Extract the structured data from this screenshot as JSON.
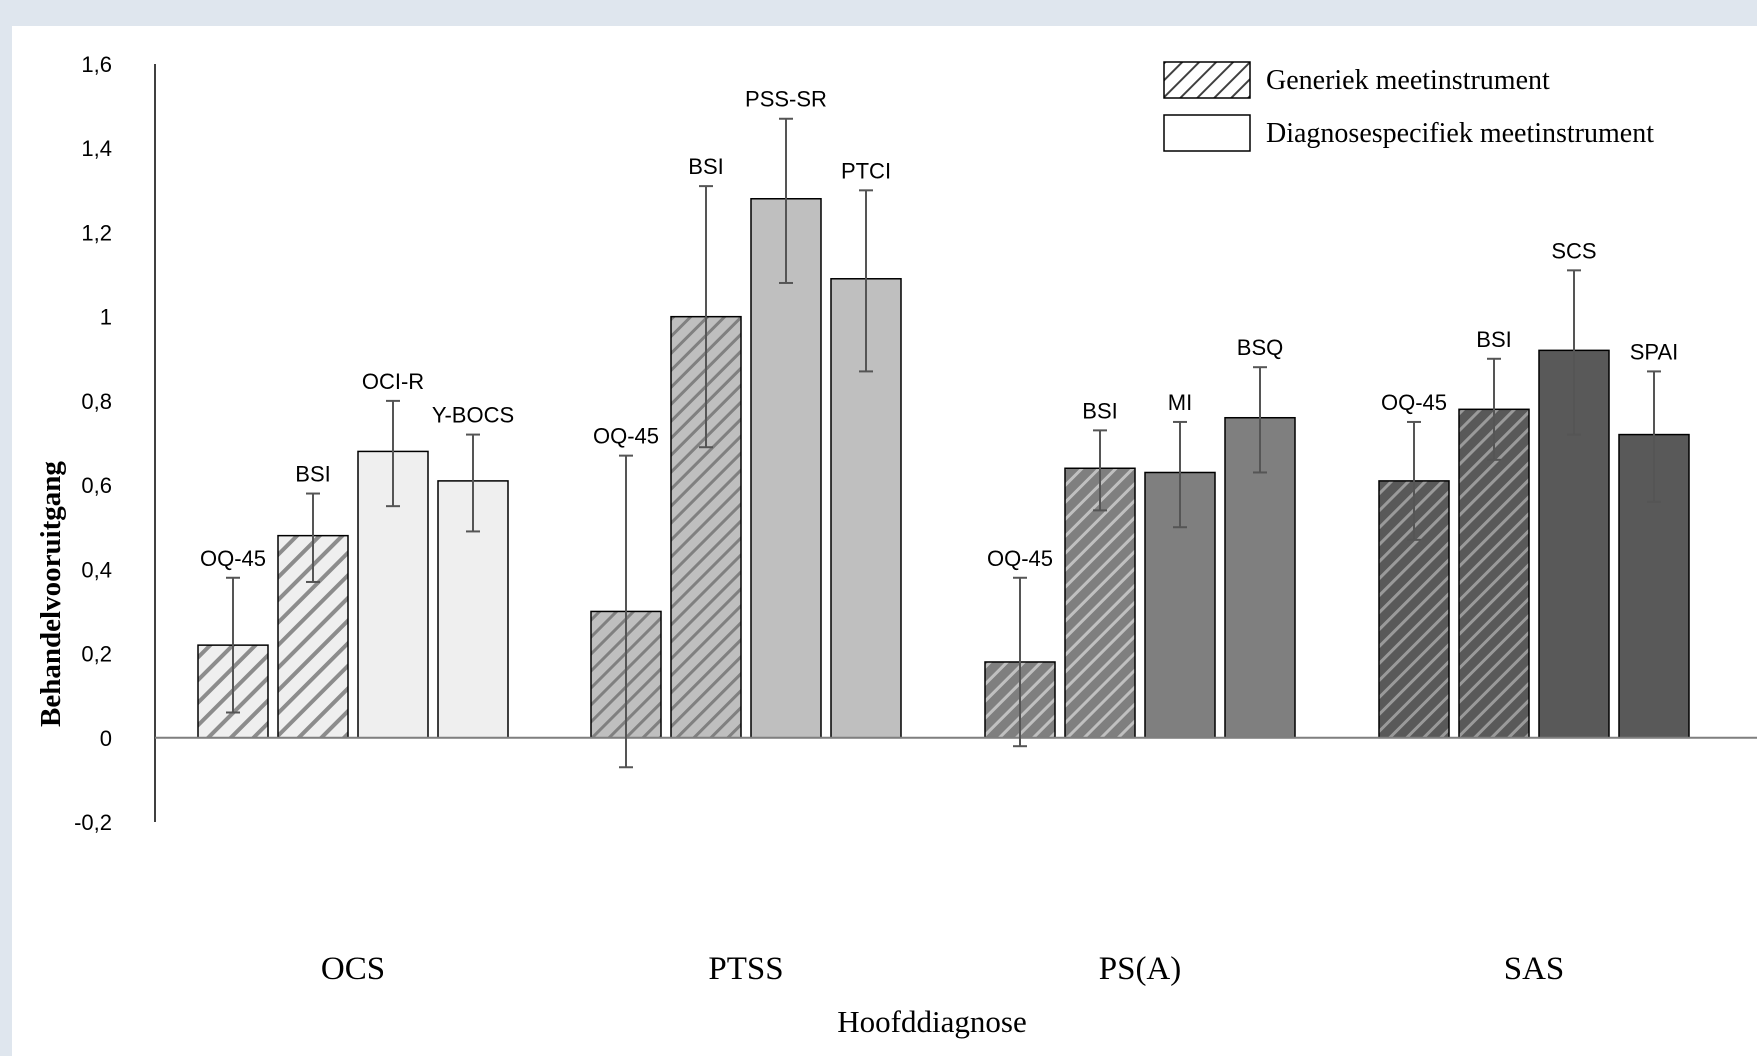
{
  "chart_data": {
    "type": "bar",
    "xlabel": "Hoofddiagnose",
    "ylabel": "Behandelvooruitgang",
    "ylim": [
      -0.2,
      1.6
    ],
    "yticks": [
      -0.2,
      0,
      0.2,
      0.4,
      0.6,
      0.8,
      1,
      1.2,
      1.4,
      1.6
    ],
    "ytick_labels": [
      "-0,2",
      "0",
      "0,2",
      "0,4",
      "0,6",
      "0,8",
      "1",
      "1,2",
      "1,4",
      "1,6"
    ],
    "grid": false,
    "legend_position": "top-right",
    "legend": [
      {
        "label": "Generiek meetinstrument",
        "pattern": "hatched"
      },
      {
        "label": "Diagnosespecifiek meetinstrument",
        "pattern": "solid"
      }
    ],
    "groups": [
      {
        "name": "OCS",
        "color": "#efefef",
        "bars": [
          {
            "label": "OQ-45",
            "value": 0.22,
            "err_low": 0.06,
            "err_high": 0.38,
            "kind": "generic"
          },
          {
            "label": "BSI",
            "value": 0.48,
            "err_low": 0.37,
            "err_high": 0.58,
            "kind": "generic"
          },
          {
            "label": "OCI-R",
            "value": 0.68,
            "err_low": 0.55,
            "err_high": 0.8,
            "kind": "specific"
          },
          {
            "label": "Y-BOCS",
            "value": 0.61,
            "err_low": 0.49,
            "err_high": 0.72,
            "kind": "specific"
          }
        ]
      },
      {
        "name": "PTSS",
        "color": "#bfbfbf",
        "bars": [
          {
            "label": "OQ-45",
            "value": 0.3,
            "err_low": -0.07,
            "err_high": 0.67,
            "kind": "generic"
          },
          {
            "label": "BSI",
            "value": 1.0,
            "err_low": 0.69,
            "err_high": 1.31,
            "kind": "generic"
          },
          {
            "label": "PSS-SR",
            "value": 1.28,
            "err_low": 1.08,
            "err_high": 1.47,
            "kind": "specific"
          },
          {
            "label": "PTCI",
            "value": 1.09,
            "err_low": 0.87,
            "err_high": 1.3,
            "kind": "specific"
          }
        ]
      },
      {
        "name": "PS(A)",
        "color": "#7f7f7f",
        "bars": [
          {
            "label": "OQ-45",
            "value": 0.18,
            "err_low": -0.02,
            "err_high": 0.38,
            "kind": "generic"
          },
          {
            "label": "BSI",
            "value": 0.64,
            "err_low": 0.54,
            "err_high": 0.73,
            "kind": "generic"
          },
          {
            "label": "MI",
            "value": 0.63,
            "err_low": 0.5,
            "err_high": 0.75,
            "kind": "specific"
          },
          {
            "label": "BSQ",
            "value": 0.76,
            "err_low": 0.63,
            "err_high": 0.88,
            "kind": "specific"
          }
        ]
      },
      {
        "name": "SAS",
        "color": "#595959",
        "bars": [
          {
            "label": "OQ-45",
            "value": 0.61,
            "err_low": 0.47,
            "err_high": 0.75,
            "kind": "generic"
          },
          {
            "label": "BSI",
            "value": 0.78,
            "err_low": 0.66,
            "err_high": 0.9,
            "kind": "generic"
          },
          {
            "label": "SCS",
            "value": 0.92,
            "err_low": 0.72,
            "err_high": 1.11,
            "kind": "specific"
          },
          {
            "label": "SPAI",
            "value": 0.72,
            "err_low": 0.56,
            "err_high": 0.87,
            "kind": "specific"
          }
        ]
      }
    ]
  }
}
